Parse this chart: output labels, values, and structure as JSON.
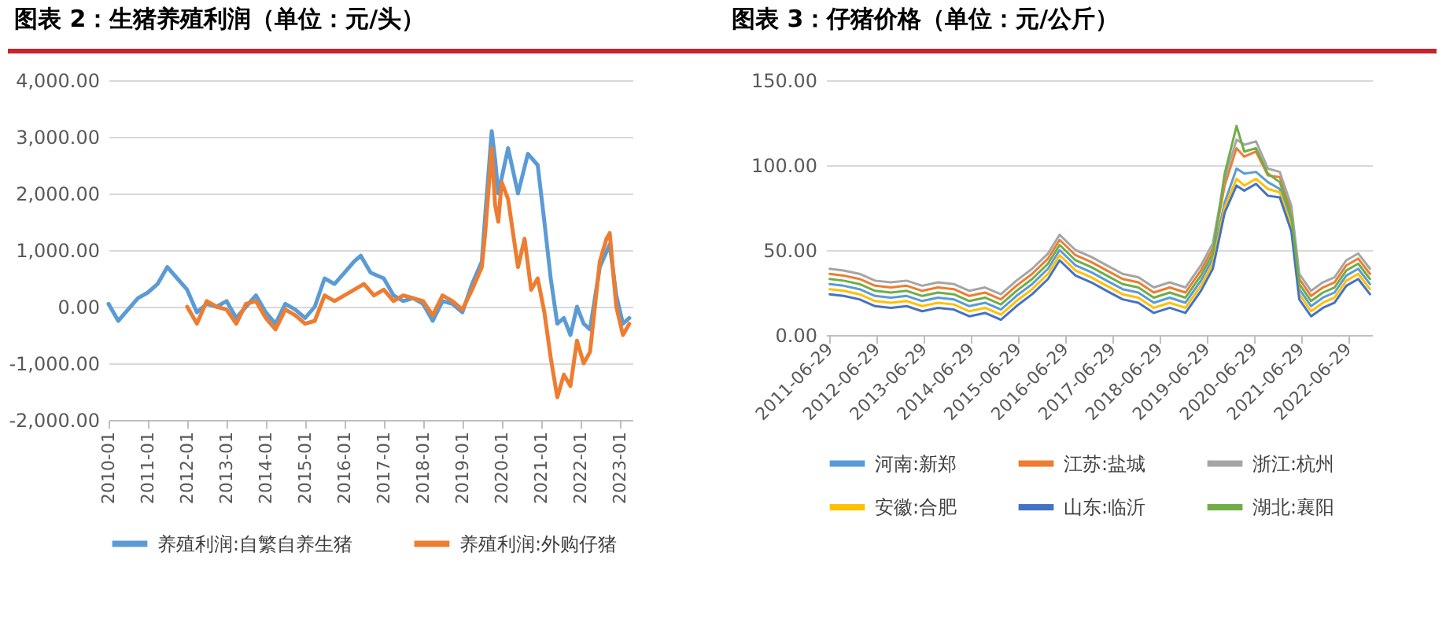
{
  "chart_data": [
    {
      "type": "line",
      "title": "图表 2：生猪养殖利润（单位：元/头）",
      "xlim": [
        "2010-01",
        "2023-05"
      ],
      "xticks": [
        "2010-01",
        "2011-01",
        "2012-01",
        "2013-01",
        "2014-01",
        "2015-01",
        "2016-01",
        "2017-01",
        "2018-01",
        "2019-01",
        "2020-01",
        "2021-01",
        "2022-01",
        "2023-01"
      ],
      "ylim": [
        -2000,
        4000
      ],
      "yticks": [
        {
          "value": -2000,
          "label": "-2,000.00"
        },
        {
          "value": -1000,
          "label": "-1,000.00"
        },
        {
          "value": 0,
          "label": "0.00"
        },
        {
          "value": 1000,
          "label": "1,000.00"
        },
        {
          "value": 2000,
          "label": "2,000.00"
        },
        {
          "value": 3000,
          "label": "3,000.00"
        },
        {
          "value": 4000,
          "label": "4,000.00"
        }
      ],
      "grid": "y",
      "legend": "bottom",
      "series": [
        {
          "name": "养殖利润:自繁自养生猪",
          "color": "#5b9bd5",
          "x": [
            "2010-01",
            "2010-04",
            "2010-07",
            "2010-10",
            "2011-01",
            "2011-04",
            "2011-07",
            "2011-10",
            "2012-01",
            "2012-04",
            "2012-07",
            "2012-10",
            "2013-01",
            "2013-04",
            "2013-07",
            "2013-10",
            "2014-01",
            "2014-04",
            "2014-07",
            "2014-10",
            "2015-01",
            "2015-04",
            "2015-07",
            "2015-10",
            "2016-01",
            "2016-04",
            "2016-06",
            "2016-09",
            "2017-01",
            "2017-04",
            "2017-07",
            "2017-10",
            "2018-01",
            "2018-04",
            "2018-07",
            "2018-10",
            "2019-01",
            "2019-04",
            "2019-07",
            "2019-08",
            "2019-10",
            "2019-11",
            "2019-12",
            "2020-03",
            "2020-06",
            "2020-09",
            "2020-12",
            "2021-02",
            "2021-04",
            "2021-06",
            "2021-08",
            "2021-10",
            "2021-12",
            "2022-02",
            "2022-04",
            "2022-07",
            "2022-10",
            "2022-12",
            "2023-02",
            "2023-04"
          ],
          "values": [
            50,
            -250,
            -50,
            150,
            250,
            400,
            700,
            500,
            300,
            -100,
            50,
            0,
            100,
            -200,
            0,
            200,
            -100,
            -300,
            50,
            -50,
            -200,
            0,
            500,
            400,
            600,
            800,
            900,
            600,
            500,
            200,
            100,
            150,
            50,
            -250,
            100,
            50,
            -100,
            400,
            800,
            1600,
            3100,
            2600,
            2000,
            2800,
            2000,
            2700,
            2500,
            1500,
            500,
            -300,
            -200,
            -500,
            0,
            -300,
            -400,
            700,
            1100,
            200,
            -300,
            -200
          ]
        },
        {
          "name": "养殖利润:外购仔猪",
          "color": "#ed7d31",
          "x": [
            "2012-01",
            "2012-04",
            "2012-07",
            "2012-10",
            "2013-01",
            "2013-04",
            "2013-07",
            "2013-10",
            "2014-01",
            "2014-04",
            "2014-07",
            "2014-10",
            "2015-01",
            "2015-04",
            "2015-07",
            "2015-10",
            "2016-01",
            "2016-04",
            "2016-07",
            "2016-10",
            "2017-01",
            "2017-04",
            "2017-07",
            "2017-10",
            "2018-01",
            "2018-04",
            "2018-07",
            "2018-10",
            "2019-01",
            "2019-04",
            "2019-07",
            "2019-08",
            "2019-10",
            "2019-11",
            "2019-12",
            "2020-01",
            "2020-03",
            "2020-06",
            "2020-08",
            "2020-10",
            "2020-12",
            "2021-02",
            "2021-04",
            "2021-06",
            "2021-08",
            "2021-10",
            "2021-12",
            "2022-02",
            "2022-04",
            "2022-07",
            "2022-09",
            "2022-10",
            "2022-12",
            "2023-02",
            "2023-04"
          ],
          "values": [
            0,
            -300,
            100,
            0,
            -50,
            -300,
            50,
            100,
            -200,
            -400,
            -50,
            -150,
            -300,
            -250,
            200,
            100,
            200,
            300,
            400,
            200,
            300,
            100,
            200,
            150,
            100,
            -150,
            200,
            100,
            -50,
            300,
            700,
            1300,
            2800,
            1800,
            1500,
            2200,
            1900,
            700,
            1200,
            300,
            500,
            -100,
            -900,
            -1600,
            -1200,
            -1400,
            -600,
            -1000,
            -800,
            800,
            1200,
            1300,
            0,
            -500,
            -300
          ]
        }
      ]
    },
    {
      "type": "line",
      "title": "图表 3：仔猪价格（单位：元/公斤）",
      "xlim": [
        "2011-06-01",
        "2022-12-31"
      ],
      "xticks": [
        "2011-06-29",
        "2012-06-29",
        "2013-06-29",
        "2014-06-29",
        "2015-06-29",
        "2016-06-29",
        "2017-06-29",
        "2018-06-29",
        "2019-06-29",
        "2020-06-29",
        "2021-06-29",
        "2022-06-29"
      ],
      "ylim": [
        0,
        150
      ],
      "yticks": [
        {
          "value": 0,
          "label": "0.00"
        },
        {
          "value": 50,
          "label": "50.00"
        },
        {
          "value": 100,
          "label": "100.00"
        },
        {
          "value": 150,
          "label": "150.00"
        }
      ],
      "grid": "y",
      "legend": "bottom",
      "x": [
        "2011-06-29",
        "2011-10-15",
        "2012-02-15",
        "2012-06-15",
        "2012-10-15",
        "2013-02-15",
        "2013-06-15",
        "2013-10-15",
        "2014-02-15",
        "2014-06-15",
        "2014-10-15",
        "2015-02-15",
        "2015-06-15",
        "2015-10-15",
        "2016-02-15",
        "2016-05-15",
        "2016-09-15",
        "2017-01-15",
        "2017-05-15",
        "2017-09-15",
        "2018-01-15",
        "2018-05-15",
        "2018-09-15",
        "2019-01-15",
        "2019-05-15",
        "2019-08-15",
        "2019-11-15",
        "2020-02-15",
        "2020-04-15",
        "2020-07-15",
        "2020-10-15",
        "2021-01-15",
        "2021-04-15",
        "2021-06-15",
        "2021-09-15",
        "2021-12-15",
        "2022-03-15",
        "2022-06-15",
        "2022-09-15",
        "2022-12-15"
      ],
      "series": [
        {
          "name": "河南:新郑",
          "color": "#5b9bd5",
          "values": [
            30,
            29,
            27,
            23,
            22,
            23,
            20,
            22,
            21,
            17,
            19,
            15,
            23,
            30,
            39,
            50,
            41,
            37,
            32,
            27,
            25,
            19,
            22,
            19,
            32,
            45,
            78,
            98,
            95,
            96,
            90,
            86,
            67,
            27,
            17,
            22,
            25,
            35,
            39,
            30
          ]
        },
        {
          "name": "江苏:盐城",
          "color": "#ed7d31",
          "values": [
            36,
            35,
            33,
            29,
            28,
            29,
            26,
            28,
            27,
            23,
            25,
            21,
            29,
            36,
            45,
            56,
            47,
            43,
            38,
            33,
            31,
            25,
            28,
            25,
            38,
            51,
            88,
            110,
            105,
            108,
            94,
            93,
            73,
            33,
            23,
            28,
            31,
            41,
            45,
            36
          ]
        },
        {
          "name": "浙江:杭州",
          "color": "#a5a5a5",
          "values": [
            39,
            38,
            36,
            32,
            31,
            32,
            29,
            31,
            30,
            26,
            28,
            24,
            32,
            39,
            48,
            59,
            50,
            46,
            41,
            36,
            34,
            28,
            31,
            28,
            41,
            54,
            92,
            115,
            112,
            114,
            98,
            96,
            76,
            36,
            26,
            31,
            34,
            44,
            48,
            39
          ]
        },
        {
          "name": "安徽:合肥",
          "color": "#ffc000",
          "values": [
            27,
            26,
            24,
            20,
            19,
            20,
            17,
            19,
            18,
            14,
            16,
            12,
            20,
            27,
            36,
            47,
            38,
            34,
            29,
            24,
            22,
            16,
            19,
            16,
            29,
            42,
            75,
            92,
            88,
            92,
            86,
            84,
            64,
            24,
            14,
            19,
            22,
            32,
            36,
            27
          ]
        },
        {
          "name": "山东:临沂",
          "color": "#4472c4",
          "values": [
            24,
            23,
            21,
            17,
            16,
            17,
            14,
            16,
            15,
            11,
            13,
            9,
            17,
            24,
            33,
            44,
            35,
            31,
            26,
            21,
            19,
            13,
            16,
            13,
            26,
            39,
            72,
            88,
            85,
            89,
            82,
            81,
            61,
            21,
            11,
            16,
            19,
            29,
            33,
            24
          ]
        },
        {
          "name": "湖北:襄阳",
          "color": "#70ad47",
          "values": [
            33,
            32,
            30,
            26,
            25,
            26,
            23,
            25,
            24,
            20,
            22,
            18,
            26,
            33,
            42,
            53,
            44,
            40,
            35,
            30,
            28,
            22,
            25,
            22,
            35,
            48,
            95,
            123,
            108,
            110,
            95,
            90,
            70,
            30,
            20,
            25,
            28,
            38,
            42,
            33
          ]
        }
      ]
    }
  ]
}
